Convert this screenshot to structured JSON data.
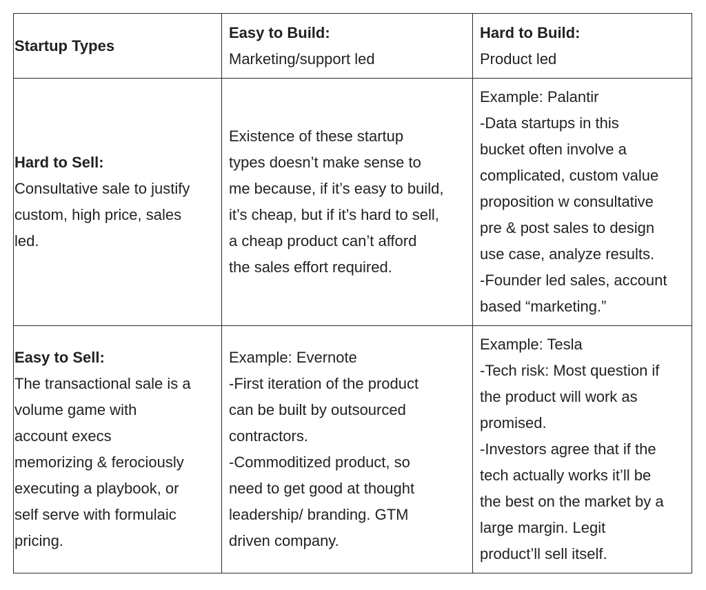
{
  "header": {
    "startup_types": "Startup Types",
    "easy_build_title": "Easy to Build:",
    "easy_build_sub": "Marketing/support led",
    "hard_build_title": "Hard to Build:",
    "hard_build_sub": "Product led"
  },
  "hard_sell": {
    "title": "Hard to Sell:",
    "desc": [
      "Consultative sale to justify",
      "custom, high price, sales",
      "led."
    ],
    "easy_build_cell": [
      "Existence of these startup",
      "types doesn’t make sense to",
      "me because, if it’s easy to build,",
      "it’s cheap, but if it’s hard to sell,",
      "a cheap product can’t afford",
      "the sales effort required."
    ],
    "hard_build_cell": [
      "Example: Palantir",
      "-Data startups in this",
      "bucket often involve a",
      "complicated, custom value",
      "proposition w consultative",
      "pre & post sales to design",
      "use case, analyze results.",
      "-Founder led sales, account",
      "based “marketing.”"
    ]
  },
  "easy_sell": {
    "title": "Easy to Sell:",
    "desc": [
      "The transactional sale is a",
      "volume game with",
      "account execs",
      "memorizing & ferociously",
      "executing a playbook, or",
      "self serve with formulaic",
      "pricing."
    ],
    "easy_build_cell": [
      "Example: Evernote",
      "-First iteration of the product",
      "can be built by outsourced",
      "contractors.",
      "-Commoditized product, so",
      "need to get good at thought",
      "leadership/ branding. GTM",
      "driven company."
    ],
    "hard_build_cell": [
      "Example: Tesla",
      "-Tech risk: Most question if",
      "the product will work as",
      "promised.",
      "-Investors agree that if the",
      "tech actually works it’ll be",
      "the best on the market by a",
      "large margin. Legit",
      "product’ll sell itself."
    ]
  }
}
